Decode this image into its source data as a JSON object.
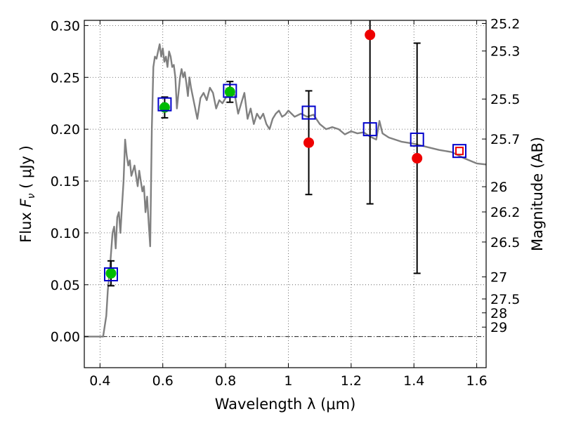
{
  "chart_data": {
    "type": "scatter",
    "xlabel": "Wavelength  λ (μm)",
    "ylabel_prefix": "Flux ",
    "ylabel_symbol": "F",
    "ylabel_subscript": "ν",
    "ylabel_suffix": " ( μJy )",
    "y2label": "Magnitude (AB)",
    "xlim": [
      0.35,
      1.63
    ],
    "ylim": [
      -0.03,
      0.305
    ],
    "grid": true,
    "x_ticks": [
      {
        "value": 0.4,
        "label": "0.4"
      },
      {
        "value": 0.6,
        "label": "0.6"
      },
      {
        "value": 0.8,
        "label": "0.8"
      },
      {
        "value": 1.0,
        "label": "1"
      },
      {
        "value": 1.2,
        "label": "1.2"
      },
      {
        "value": 1.4,
        "label": "1.4"
      },
      {
        "value": 1.6,
        "label": "1.6"
      }
    ],
    "y_ticks": [
      {
        "value": 0.0,
        "label": "0.00"
      },
      {
        "value": 0.05,
        "label": "0.05"
      },
      {
        "value": 0.1,
        "label": "0.10"
      },
      {
        "value": 0.15,
        "label": "0.15"
      },
      {
        "value": 0.2,
        "label": "0.20"
      },
      {
        "value": 0.25,
        "label": "0.25"
      },
      {
        "value": 0.3,
        "label": "0.30"
      }
    ],
    "mag_ticks": [
      {
        "value": 25.2,
        "label": "25.2"
      },
      {
        "value": 25.3,
        "label": "25.3"
      },
      {
        "value": 25.5,
        "label": "25.5"
      },
      {
        "value": 25.7,
        "label": "25.7"
      },
      {
        "value": 26,
        "label": "26"
      },
      {
        "value": 26.2,
        "label": "26.2"
      },
      {
        "value": 26.5,
        "label": "26.5"
      },
      {
        "value": 27,
        "label": "27"
      },
      {
        "value": 27.5,
        "label": "27.5"
      },
      {
        "value": 28,
        "label": "28"
      },
      {
        "value": 29,
        "label": "29"
      }
    ],
    "model_spectrum": {
      "color": "#808080",
      "points": [
        [
          0.35,
          0.0
        ],
        [
          0.41,
          0.0
        ],
        [
          0.42,
          0.02
        ],
        [
          0.425,
          0.045
        ],
        [
          0.43,
          0.06
        ],
        [
          0.435,
          0.08
        ],
        [
          0.44,
          0.1
        ],
        [
          0.445,
          0.106
        ],
        [
          0.45,
          0.085
        ],
        [
          0.455,
          0.115
        ],
        [
          0.46,
          0.12
        ],
        [
          0.465,
          0.1
        ],
        [
          0.47,
          0.125
        ],
        [
          0.475,
          0.15
        ],
        [
          0.48,
          0.19
        ],
        [
          0.485,
          0.175
        ],
        [
          0.49,
          0.165
        ],
        [
          0.495,
          0.17
        ],
        [
          0.5,
          0.155
        ],
        [
          0.505,
          0.16
        ],
        [
          0.51,
          0.165
        ],
        [
          0.515,
          0.155
        ],
        [
          0.52,
          0.145
        ],
        [
          0.525,
          0.16
        ],
        [
          0.53,
          0.15
        ],
        [
          0.535,
          0.14
        ],
        [
          0.54,
          0.145
        ],
        [
          0.545,
          0.12
        ],
        [
          0.55,
          0.135
        ],
        [
          0.555,
          0.11
        ],
        [
          0.56,
          0.087
        ],
        [
          0.565,
          0.2
        ],
        [
          0.57,
          0.26
        ],
        [
          0.575,
          0.27
        ],
        [
          0.58,
          0.268
        ],
        [
          0.585,
          0.275
        ],
        [
          0.59,
          0.282
        ],
        [
          0.595,
          0.27
        ],
        [
          0.6,
          0.278
        ],
        [
          0.605,
          0.265
        ],
        [
          0.61,
          0.27
        ],
        [
          0.615,
          0.26
        ],
        [
          0.62,
          0.275
        ],
        [
          0.625,
          0.27
        ],
        [
          0.63,
          0.26
        ],
        [
          0.635,
          0.262
        ],
        [
          0.64,
          0.25
        ],
        [
          0.645,
          0.22
        ],
        [
          0.65,
          0.235
        ],
        [
          0.655,
          0.25
        ],
        [
          0.66,
          0.258
        ],
        [
          0.665,
          0.25
        ],
        [
          0.67,
          0.255
        ],
        [
          0.675,
          0.245
        ],
        [
          0.68,
          0.232
        ],
        [
          0.685,
          0.25
        ],
        [
          0.69,
          0.24
        ],
        [
          0.7,
          0.225
        ],
        [
          0.71,
          0.21
        ],
        [
          0.72,
          0.23
        ],
        [
          0.73,
          0.235
        ],
        [
          0.74,
          0.228
        ],
        [
          0.75,
          0.24
        ],
        [
          0.76,
          0.235
        ],
        [
          0.77,
          0.22
        ],
        [
          0.78,
          0.228
        ],
        [
          0.79,
          0.225
        ],
        [
          0.8,
          0.23
        ],
        [
          0.81,
          0.235
        ],
        [
          0.82,
          0.24
        ],
        [
          0.83,
          0.232
        ],
        [
          0.84,
          0.215
        ],
        [
          0.85,
          0.225
        ],
        [
          0.86,
          0.235
        ],
        [
          0.87,
          0.21
        ],
        [
          0.88,
          0.22
        ],
        [
          0.89,
          0.205
        ],
        [
          0.9,
          0.215
        ],
        [
          0.91,
          0.21
        ],
        [
          0.92,
          0.215
        ],
        [
          0.93,
          0.205
        ],
        [
          0.94,
          0.2
        ],
        [
          0.95,
          0.21
        ],
        [
          0.96,
          0.215
        ],
        [
          0.97,
          0.218
        ],
        [
          0.98,
          0.212
        ],
        [
          0.99,
          0.214
        ],
        [
          1.0,
          0.218
        ],
        [
          1.02,
          0.212
        ],
        [
          1.04,
          0.215
        ],
        [
          1.06,
          0.212
        ],
        [
          1.08,
          0.214
        ],
        [
          1.1,
          0.205
        ],
        [
          1.12,
          0.2
        ],
        [
          1.14,
          0.202
        ],
        [
          1.16,
          0.2
        ],
        [
          1.18,
          0.195
        ],
        [
          1.2,
          0.198
        ],
        [
          1.22,
          0.196
        ],
        [
          1.24,
          0.197
        ],
        [
          1.26,
          0.193
        ],
        [
          1.28,
          0.19
        ],
        [
          1.29,
          0.208
        ],
        [
          1.3,
          0.196
        ],
        [
          1.32,
          0.192
        ],
        [
          1.36,
          0.188
        ],
        [
          1.4,
          0.186
        ],
        [
          1.44,
          0.183
        ],
        [
          1.48,
          0.18
        ],
        [
          1.52,
          0.178
        ],
        [
          1.56,
          0.172
        ],
        [
          1.6,
          0.167
        ],
        [
          1.63,
          0.166
        ]
      ]
    },
    "model_photometry": {
      "marker": "open square",
      "color": "#0000cc",
      "points": [
        {
          "x": 0.435,
          "y": 0.06
        },
        {
          "x": 0.606,
          "y": 0.224
        },
        {
          "x": 0.814,
          "y": 0.237
        },
        {
          "x": 1.065,
          "y": 0.216
        },
        {
          "x": 1.26,
          "y": 0.2
        },
        {
          "x": 1.41,
          "y": 0.19
        },
        {
          "x": 1.545,
          "y": 0.179
        }
      ]
    },
    "detections": {
      "marker": "filled circle",
      "color": "#00bb00",
      "points": [
        {
          "x": 0.435,
          "y": 0.061,
          "err": 0.012
        },
        {
          "x": 0.606,
          "y": 0.221,
          "err": 0.01
        },
        {
          "x": 0.814,
          "y": 0.236,
          "err": 0.01
        }
      ]
    },
    "upper_limits": {
      "marker": "filled circle",
      "color": "#ee0000",
      "points": [
        {
          "x": 1.065,
          "y": 0.187,
          "err": 0.05
        },
        {
          "x": 1.26,
          "y": 0.291,
          "err": 0.163
        },
        {
          "x": 1.41,
          "y": 0.172,
          "err": 0.111
        }
      ]
    },
    "extra_point": {
      "marker": "small open square",
      "color": "#ee0000",
      "x": 1.545,
      "y": 0.179
    }
  }
}
